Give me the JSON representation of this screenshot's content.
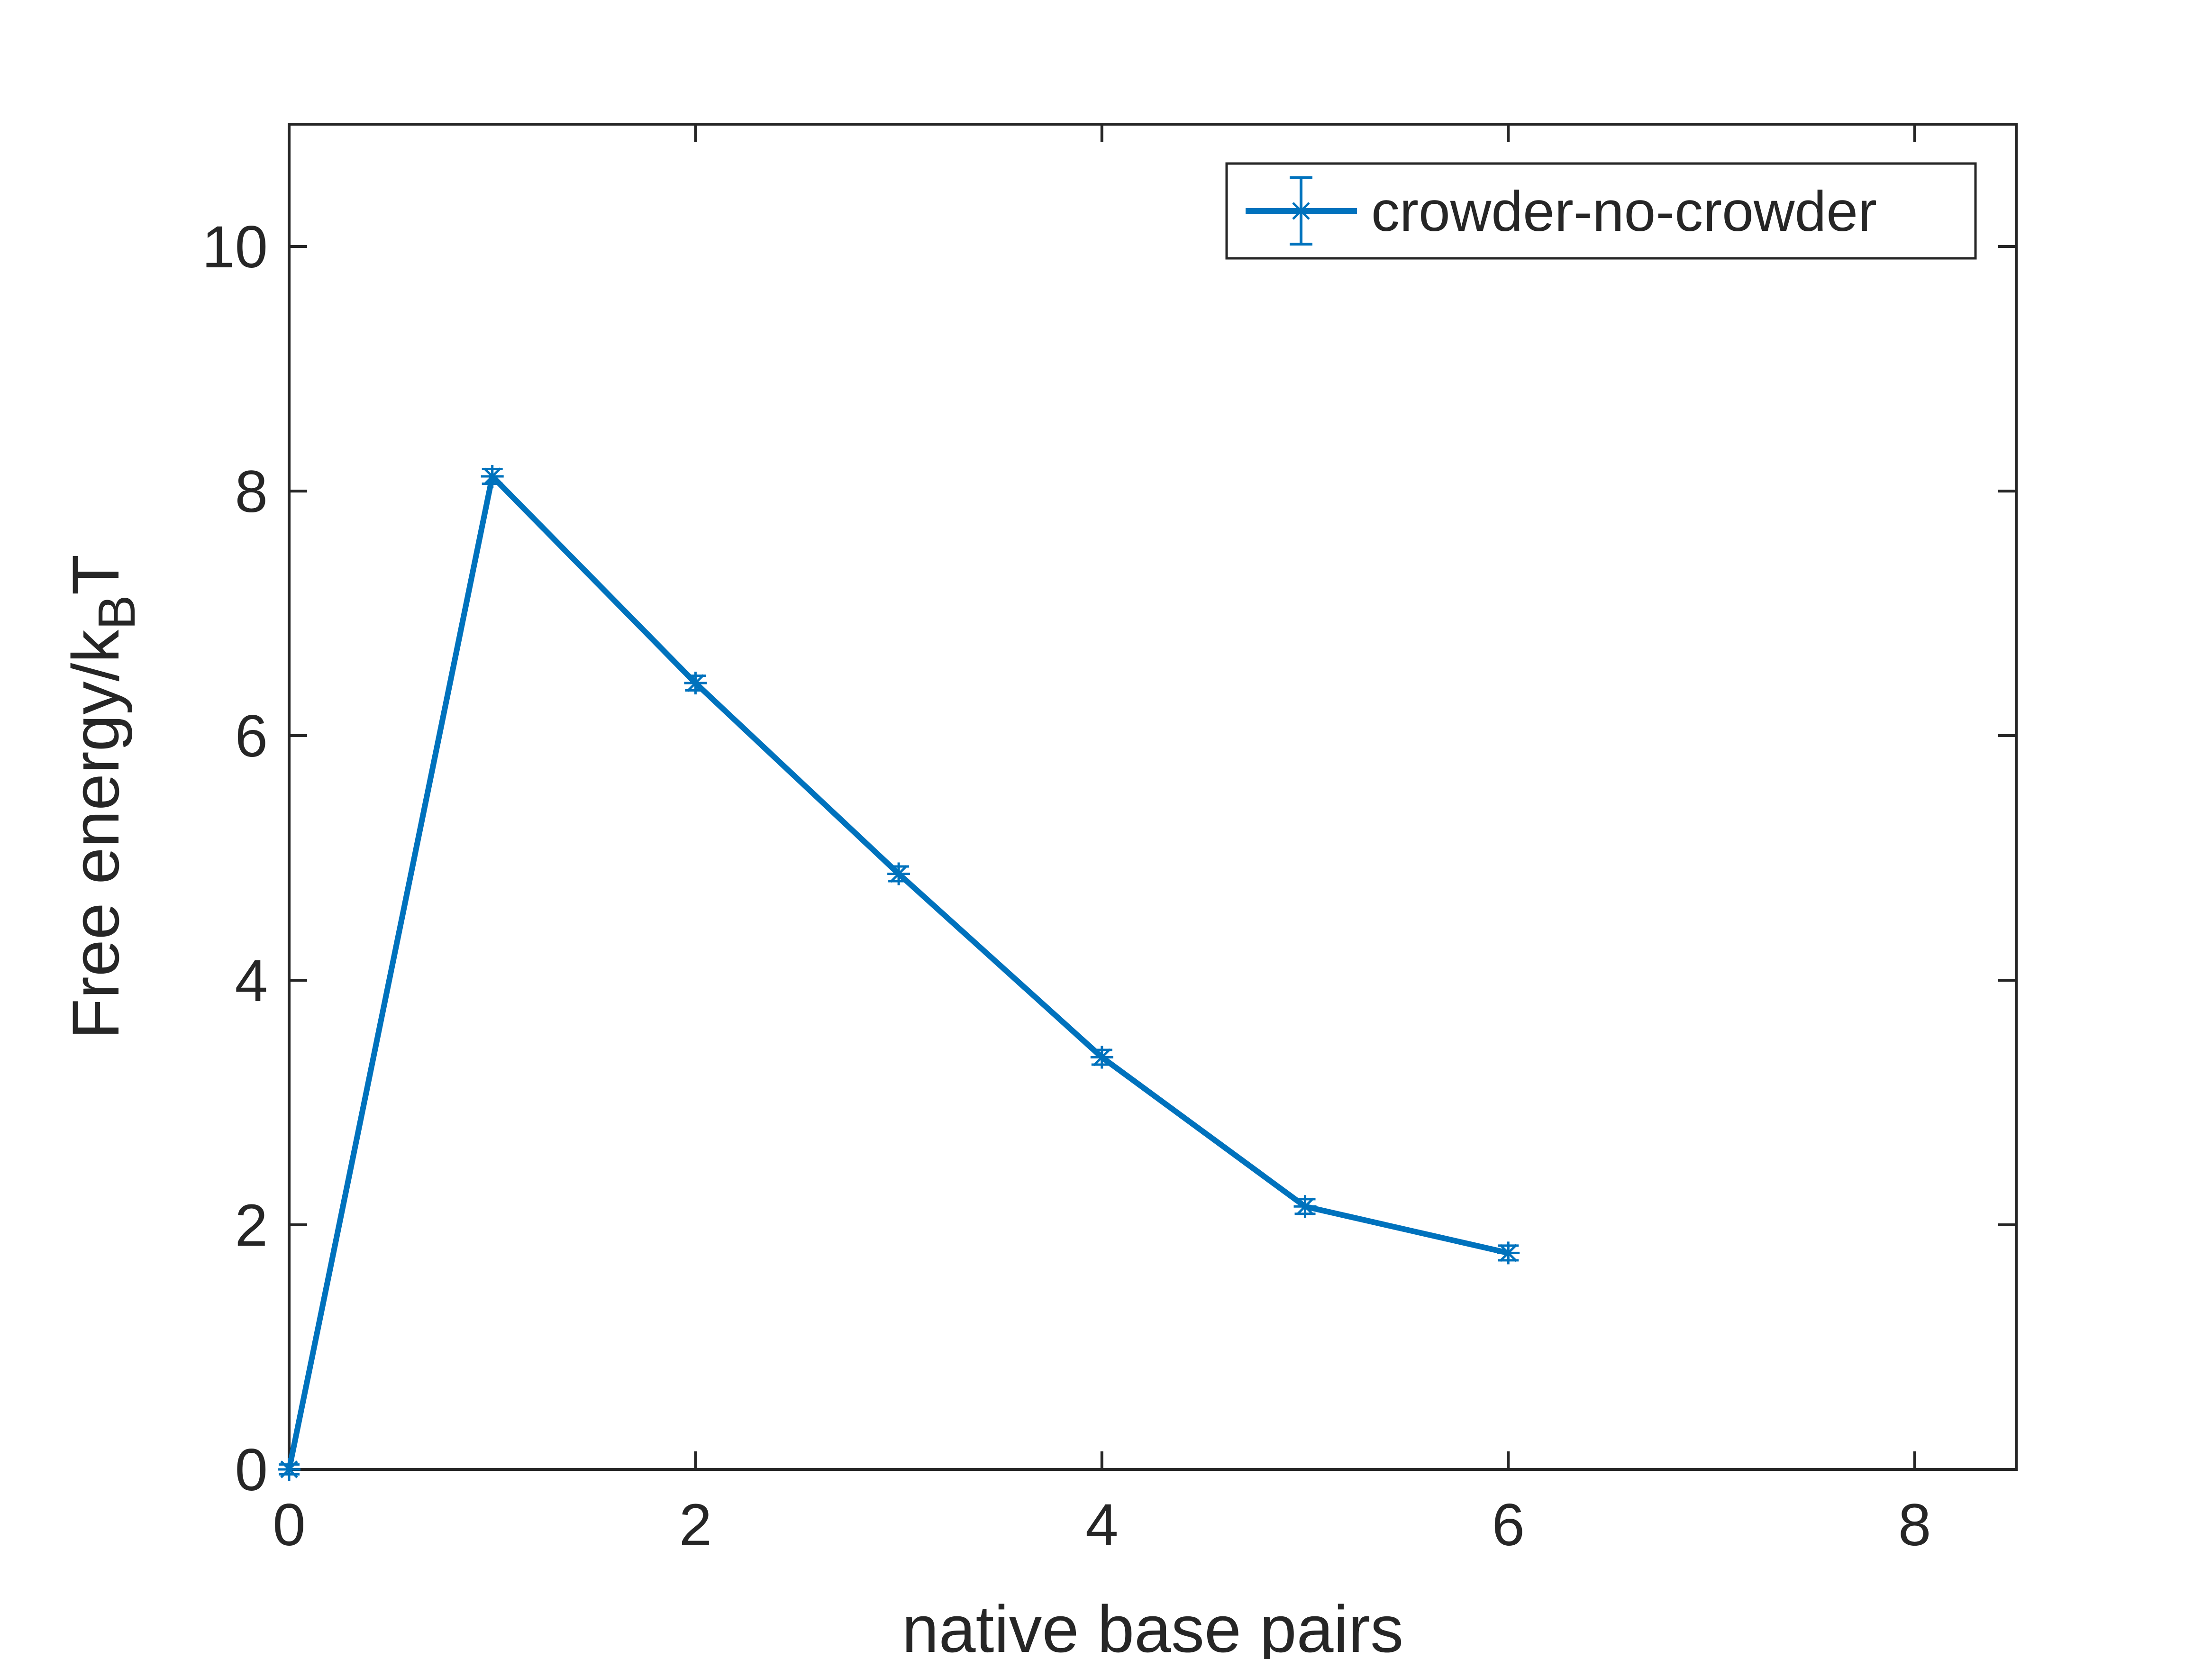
{
  "chart_data": {
    "type": "line",
    "title": "",
    "xlabel": "native base pairs",
    "ylabel": {
      "main": "Free energy/k",
      "subscript": "B",
      "suffix": "T"
    },
    "xlim": [
      0,
      8.5
    ],
    "ylim": [
      0,
      11
    ],
    "xticks": [
      0,
      2,
      4,
      6,
      8
    ],
    "yticks": [
      0,
      2,
      4,
      6,
      8,
      10
    ],
    "xtick_labels": [
      "0",
      "2",
      "4",
      "6",
      "8"
    ],
    "ytick_labels": [
      "0",
      "2",
      "4",
      "6",
      "8",
      "10"
    ],
    "grid": false,
    "legend_position": "top-right",
    "series": [
      {
        "name": "crowder-no-crowder",
        "color": "#0072BD",
        "marker": "asterisk",
        "error_bars": true,
        "x": [
          0,
          1,
          2,
          3,
          4,
          5,
          6
        ],
        "y": [
          0,
          8.12,
          6.43,
          4.87,
          3.37,
          2.15,
          1.77
        ],
        "err": [
          0.04,
          0.06,
          0.06,
          0.06,
          0.06,
          0.06,
          0.06
        ]
      }
    ]
  }
}
